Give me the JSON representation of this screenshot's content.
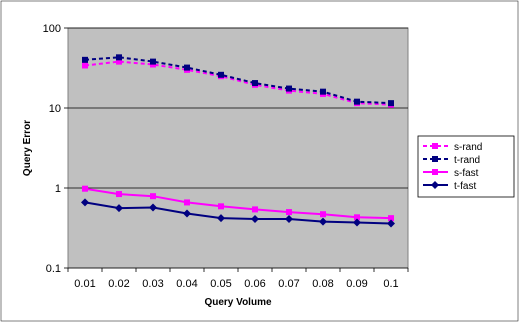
{
  "chart_data": {
    "type": "line",
    "title": "",
    "xlabel": "Query Volume",
    "ylabel": "Query Error",
    "yscale": "log",
    "ylim": [
      0.1,
      100
    ],
    "yticks": [
      "0.1",
      "1",
      "10",
      "100"
    ],
    "categories": [
      "0.01",
      "0.02",
      "0.03",
      "0.04",
      "0.05",
      "0.06",
      "0.07",
      "0.08",
      "0.09",
      "0.1"
    ],
    "grid": "horizontal major gridlines",
    "legend_position": "right",
    "plot_background": "#c0c0c0",
    "series": [
      {
        "name": "s-rand",
        "color": "#ff00ff",
        "style": "dashed",
        "marker": "square",
        "values": [
          34,
          38,
          35,
          30,
          25,
          19.5,
          16.5,
          15,
          11.5,
          11
        ]
      },
      {
        "name": "t-rand",
        "color": "#000080",
        "style": "dashed",
        "marker": "square",
        "values": [
          40,
          43,
          38,
          32,
          26,
          20.5,
          17.5,
          16,
          12,
          11.5
        ]
      },
      {
        "name": "s-fast",
        "color": "#ff00ff",
        "style": "solid",
        "marker": "square",
        "values": [
          0.98,
          0.84,
          0.79,
          0.66,
          0.59,
          0.54,
          0.5,
          0.47,
          0.43,
          0.42
        ]
      },
      {
        "name": "t-fast",
        "color": "#000080",
        "style": "solid",
        "marker": "diamond",
        "values": [
          0.66,
          0.56,
          0.57,
          0.48,
          0.42,
          0.41,
          0.41,
          0.38,
          0.37,
          0.36
        ]
      }
    ]
  }
}
